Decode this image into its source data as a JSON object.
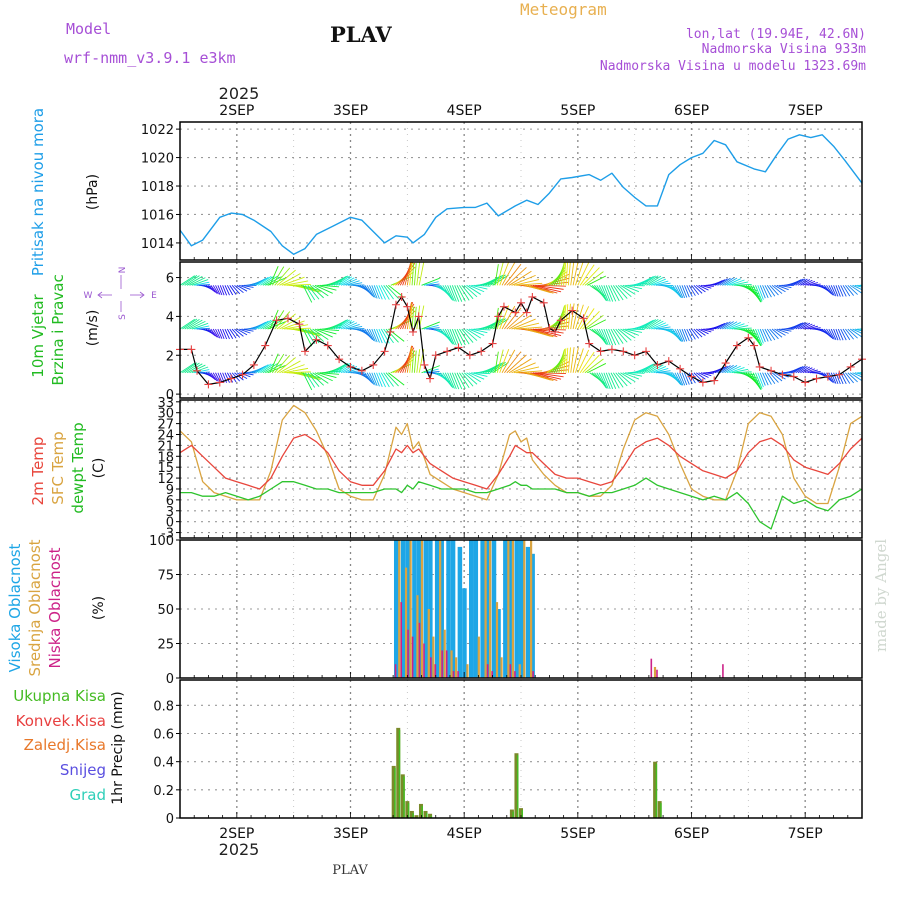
{
  "header": {
    "model_label": "Model",
    "model_name": "wrf-nmm_v3.9.1  e3km",
    "station": "PLAV",
    "title": "Meteogram",
    "lonlat": "lon,lat (19.94E, 42.6N)",
    "elevation": "Nadmorska Visina 933m",
    "model_elevation": "Nadmorska Visina u modelu 1323.69m",
    "year": "2025",
    "footer_station": "PLAV",
    "watermark": "made by Angel"
  },
  "colors": {
    "pressure": "#1e9ee8",
    "temp2m": "#e8463c",
    "sfc_temp": "#d9a441",
    "dewpoint": "#2ec42e",
    "high_cloud": "#1ea6e6",
    "mid_cloud": "#d9a441",
    "low_cloud": "#cc2288",
    "total_precip": "#44bb22",
    "convective_precip": "#e84040",
    "frozen_precip": "#e8782a",
    "snow": "#5a4fe0",
    "hail": "#2ecfb8",
    "precip_bar": "#7a8a2a",
    "wind_speed": "#000000",
    "wind_speed_marker": "#e84040",
    "compass": "#9b59d0"
  },
  "chart_data": [
    {
      "type": "line",
      "panel": "pressure",
      "title": "Pritisak na nivou mora",
      "ylabel": "(hPa)",
      "ylim": [
        1012.8,
        1022.5
      ],
      "yticks": [
        1014,
        1016,
        1018,
        1020,
        1022
      ],
      "xlim_days": [
        1.5,
        7.5
      ],
      "xtick_labels": [
        "2SEP",
        "3SEP",
        "4SEP",
        "5SEP",
        "6SEP",
        "7SEP"
      ],
      "x": [
        1.5,
        1.6,
        1.7,
        1.85,
        1.95,
        2.05,
        2.15,
        2.3,
        2.4,
        2.5,
        2.6,
        2.7,
        2.85,
        3.0,
        3.1,
        3.2,
        3.3,
        3.4,
        3.5,
        3.55,
        3.65,
        3.75,
        3.85,
        4.0,
        4.1,
        4.2,
        4.3,
        4.45,
        4.55,
        4.65,
        4.75,
        4.85,
        4.95,
        5.1,
        5.2,
        5.3,
        5.4,
        5.5,
        5.6,
        5.7,
        5.8,
        5.9,
        6.0,
        6.1,
        6.2,
        6.3,
        6.4,
        6.55,
        6.65,
        6.75,
        6.85,
        6.95,
        7.05,
        7.15,
        7.25,
        7.35,
        7.5
      ],
      "series": [
        {
          "name": "MSLP",
          "values": [
            1014.9,
            1013.8,
            1014.2,
            1015.8,
            1016.1,
            1016.0,
            1015.6,
            1014.8,
            1013.8,
            1013.2,
            1013.6,
            1014.6,
            1015.2,
            1015.8,
            1015.6,
            1014.8,
            1014.0,
            1014.5,
            1014.4,
            1014.0,
            1014.6,
            1015.8,
            1016.4,
            1016.5,
            1016.5,
            1016.8,
            1015.9,
            1016.6,
            1017.0,
            1016.7,
            1017.5,
            1018.5,
            1018.6,
            1018.8,
            1018.4,
            1018.9,
            1017.9,
            1017.2,
            1016.6,
            1016.6,
            1018.8,
            1019.5,
            1020.0,
            1020.3,
            1021.2,
            1020.9,
            1019.7,
            1019.2,
            1019.0,
            1020.2,
            1021.3,
            1021.6,
            1021.4,
            1021.6,
            1020.8,
            1019.8,
            1018.2
          ]
        }
      ]
    },
    {
      "type": "line",
      "panel": "wind",
      "title": "10m Vjetar",
      "title2": "Brzina i Pravac",
      "ylabel": "(m/s)",
      "ylim": [
        -0.2,
        6.8
      ],
      "yticks": [
        0,
        2,
        4,
        6
      ],
      "compass_legend": {
        "north": "N",
        "west": "W",
        "east": "E",
        "south": "S"
      },
      "x": [
        1.5,
        1.6,
        1.65,
        1.75,
        1.85,
        1.95,
        2.05,
        2.15,
        2.25,
        2.35,
        2.45,
        2.55,
        2.6,
        2.7,
        2.8,
        2.9,
        3.0,
        3.1,
        3.2,
        3.3,
        3.35,
        3.4,
        3.45,
        3.5,
        3.55,
        3.6,
        3.65,
        3.7,
        3.75,
        3.85,
        3.95,
        4.05,
        4.15,
        4.25,
        4.3,
        4.35,
        4.45,
        4.5,
        4.55,
        4.6,
        4.7,
        4.75,
        4.8,
        4.85,
        4.95,
        5.05,
        5.1,
        5.2,
        5.3,
        5.4,
        5.5,
        5.6,
        5.7,
        5.8,
        5.9,
        6.0,
        6.1,
        6.2,
        6.3,
        6.4,
        6.5,
        6.55,
        6.6,
        6.7,
        6.8,
        6.9,
        7.0,
        7.1,
        7.2,
        7.3,
        7.4,
        7.5
      ],
      "series": [
        {
          "name": "Wind speed",
          "values": [
            2.3,
            2.3,
            1.2,
            0.5,
            0.6,
            0.8,
            1.0,
            1.5,
            2.5,
            3.8,
            3.9,
            3.6,
            2.2,
            2.8,
            2.5,
            1.8,
            1.4,
            1.2,
            1.5,
            2.2,
            3.2,
            4.6,
            5.0,
            4.5,
            3.2,
            4.0,
            1.5,
            0.8,
            2.0,
            2.2,
            2.4,
            2.0,
            2.2,
            2.6,
            4.0,
            4.5,
            4.2,
            4.7,
            4.2,
            5.0,
            4.7,
            3.4,
            3.2,
            3.8,
            4.3,
            3.9,
            2.6,
            2.2,
            2.3,
            2.2,
            2.0,
            2.2,
            1.5,
            1.7,
            1.3,
            0.9,
            0.6,
            0.7,
            1.6,
            2.5,
            2.9,
            2.5,
            1.4,
            1.2,
            1.0,
            0.9,
            0.6,
            0.8,
            0.9,
            1.0,
            1.4,
            1.8
          ]
        }
      ]
    },
    {
      "type": "line",
      "panel": "temperature",
      "titles": [
        "2m Temp",
        "SFC Temp",
        "dewpt Temp"
      ],
      "ylabel": "(C)",
      "ylim": [
        -4.5,
        33.5
      ],
      "yticks": [
        -3,
        0,
        3,
        6,
        9,
        12,
        15,
        18,
        21,
        24,
        27,
        30,
        33
      ],
      "x": [
        1.5,
        1.6,
        1.7,
        1.8,
        1.9,
        2.0,
        2.1,
        2.2,
        2.3,
        2.4,
        2.5,
        2.6,
        2.7,
        2.8,
        2.9,
        3.0,
        3.1,
        3.2,
        3.3,
        3.4,
        3.45,
        3.5,
        3.55,
        3.6,
        3.7,
        3.8,
        3.9,
        4.0,
        4.1,
        4.2,
        4.3,
        4.4,
        4.45,
        4.5,
        4.55,
        4.6,
        4.7,
        4.8,
        4.9,
        5.0,
        5.1,
        5.2,
        5.3,
        5.4,
        5.5,
        5.6,
        5.7,
        5.8,
        5.9,
        6.0,
        6.1,
        6.2,
        6.3,
        6.4,
        6.5,
        6.6,
        6.7,
        6.8,
        6.9,
        7.0,
        7.1,
        7.2,
        7.3,
        7.4,
        7.5
      ],
      "series": [
        {
          "name": "2m Temp",
          "values": [
            19,
            21,
            18,
            15,
            12,
            11,
            10,
            9,
            12,
            18,
            23,
            24,
            22,
            19,
            14,
            11,
            10,
            10,
            14,
            20,
            19,
            21,
            19,
            20,
            16,
            14,
            12,
            11,
            10,
            9,
            13,
            18,
            21,
            20,
            19,
            19,
            16,
            13,
            12,
            12,
            11,
            10,
            11,
            15,
            20,
            22,
            23,
            21,
            18,
            16,
            14,
            13,
            12,
            14,
            19,
            22,
            23,
            21,
            17,
            15,
            14,
            13,
            16,
            20,
            23
          ]
        },
        {
          "name": "SFC Temp",
          "values": [
            25,
            22,
            11,
            8,
            7,
            6,
            6,
            6,
            14,
            28,
            32,
            30,
            25,
            18,
            9,
            7,
            6,
            6,
            13,
            26,
            24,
            27,
            20,
            22,
            13,
            11,
            9,
            8,
            7,
            6,
            13,
            24,
            25,
            22,
            23,
            17,
            13,
            10,
            8,
            8,
            7,
            7,
            10,
            20,
            28,
            30,
            29,
            24,
            16,
            9,
            7,
            6,
            6,
            14,
            27,
            30,
            29,
            24,
            12,
            7,
            5,
            5,
            15,
            27,
            29
          ]
        },
        {
          "name": "dewpt Temp",
          "values": [
            8,
            8,
            7,
            7,
            8,
            7,
            6,
            7,
            9,
            11,
            11,
            10,
            9,
            9,
            8,
            8,
            8,
            8,
            9,
            9,
            8,
            10,
            9,
            11,
            10,
            9,
            9,
            9,
            8,
            8,
            9,
            10,
            11,
            10,
            10,
            9,
            9,
            9,
            8,
            8,
            7,
            8,
            8,
            9,
            10,
            12,
            10,
            9,
            8,
            7,
            6,
            7,
            6,
            8,
            5,
            0,
            -2,
            7,
            5,
            6,
            4,
            3,
            6,
            7,
            9
          ]
        }
      ]
    },
    {
      "type": "bar",
      "panel": "cloudiness",
      "titles": [
        "Visoka Oblacnost",
        "Srednja Oblacnost",
        "Niska Oblacnost"
      ],
      "ylabel": "(%)",
      "ylim": [
        0,
        100
      ],
      "yticks": [
        0,
        25,
        50,
        75,
        100
      ],
      "x": [
        3.37,
        3.42,
        3.48,
        3.52,
        3.58,
        3.62,
        3.68,
        3.72,
        3.78,
        3.82,
        3.88,
        3.92,
        3.98,
        4.02,
        4.08,
        4.12,
        4.18,
        4.22,
        4.28,
        4.32,
        4.38,
        4.42,
        4.48,
        4.52,
        4.58,
        4.62,
        5.62,
        5.67,
        6.25
      ],
      "series": [
        {
          "name": "Visoka Oblacnost",
          "values": [
            0,
            100,
            100,
            100,
            100,
            100,
            100,
            100,
            100,
            100,
            100,
            100,
            95,
            65,
            100,
            100,
            100,
            100,
            100,
            50,
            100,
            100,
            100,
            100,
            95,
            90,
            0,
            0,
            0
          ]
        },
        {
          "name": "Srednja Oblacnost",
          "values": [
            0,
            100,
            80,
            100,
            60,
            100,
            50,
            30,
            100,
            35,
            20,
            15,
            0,
            10,
            0,
            30,
            100,
            100,
            55,
            15,
            100,
            100,
            10,
            100,
            100,
            0,
            0,
            8,
            0
          ]
        },
        {
          "name": "Niska Oblacnost",
          "values": [
            10,
            55,
            35,
            30,
            40,
            25,
            15,
            10,
            20,
            20,
            5,
            5,
            0,
            0,
            0,
            0,
            10,
            5,
            0,
            0,
            10,
            5,
            0,
            0,
            5,
            0,
            14,
            6,
            10
          ]
        }
      ]
    },
    {
      "type": "bar",
      "panel": "precipitation",
      "titles": [
        "Ukupna Kisa",
        "Konvek.Kisa",
        "Zaledj.Kisa",
        "Snijeg",
        "Grad"
      ],
      "ylabel": "1hr Precip (mm)",
      "ylim": [
        0,
        0.98
      ],
      "yticks": [
        0,
        0.2,
        0.4,
        0.6,
        0.8
      ],
      "x": [
        3.38,
        3.42,
        3.46,
        3.5,
        3.54,
        3.58,
        3.62,
        3.66,
        3.7,
        4.42,
        4.46,
        4.5,
        5.68,
        5.72
      ],
      "series": [
        {
          "name": "1hr precip",
          "values": [
            0.37,
            0.64,
            0.31,
            0.12,
            0.05,
            0.02,
            0.1,
            0.05,
            0.03,
            0.06,
            0.46,
            0.07,
            0.4,
            0.12
          ]
        }
      ]
    }
  ]
}
